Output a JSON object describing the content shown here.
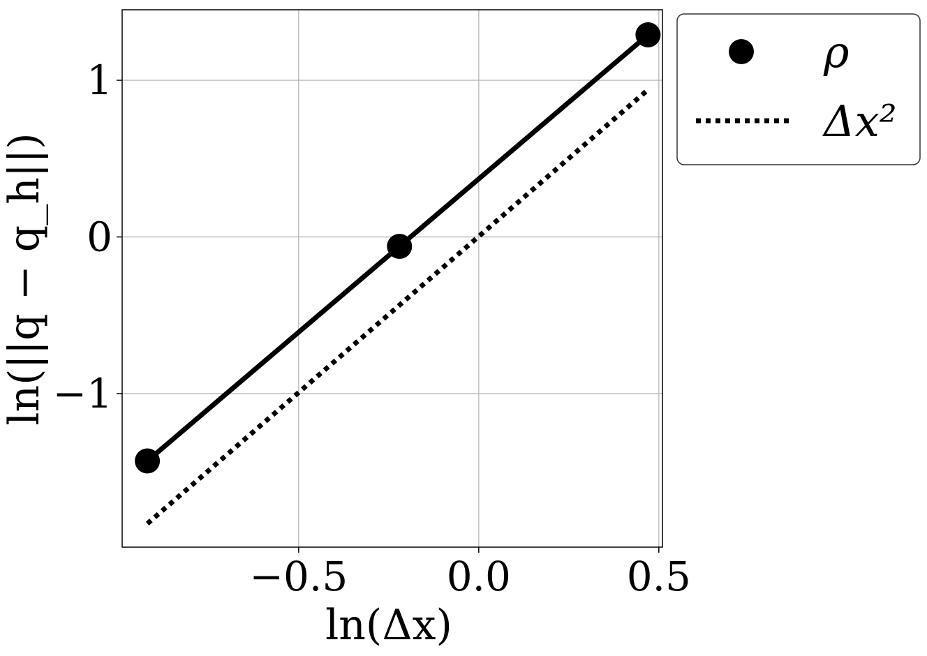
{
  "chart_data": {
    "type": "line",
    "xlabel": "ln(Δx)",
    "ylabel": "ln(||q − q_h||)",
    "xlim": [
      -0.99,
      0.51
    ],
    "ylim": [
      -1.98,
      1.45
    ],
    "grid": true,
    "x_ticks": [
      {
        "value": -0.5,
        "label": "−0.5"
      },
      {
        "value": 0.0,
        "label": "0.0"
      },
      {
        "value": 0.5,
        "label": "0.5"
      }
    ],
    "y_ticks": [
      {
        "value": 1,
        "label": "1"
      },
      {
        "value": 0,
        "label": "0"
      },
      {
        "value": -1,
        "label": "−1"
      }
    ],
    "legend_position": "outside-right-top",
    "series": [
      {
        "name": "ρ",
        "style": "solid-with-markers",
        "color": "#000000",
        "x": [
          -0.92,
          -0.22,
          0.47
        ],
        "y": [
          -1.43,
          -0.06,
          1.29
        ]
      },
      {
        "name": "Δx²",
        "style": "dotted",
        "color": "#000000",
        "x": [
          -0.92,
          0.47
        ],
        "y": [
          -1.83,
          0.94
        ]
      }
    ]
  }
}
